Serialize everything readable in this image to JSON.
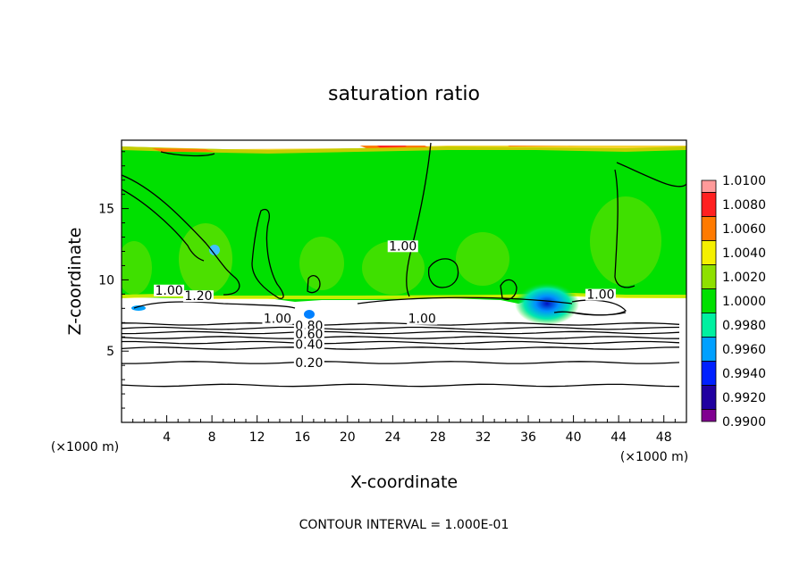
{
  "chart_data": {
    "type": "heatmap",
    "title": "saturation ratio",
    "xlabel": "X-coordinate",
    "ylabel": "Z-coordinate",
    "x_unit_left": "(×1000 m)",
    "x_unit_right": "(×1000 m)",
    "footer": "CONTOUR INTERVAL = 1.000E-01",
    "xlim": [
      0,
      50
    ],
    "ylim": [
      0,
      19.8
    ],
    "x_ticks": [
      4,
      8,
      12,
      16,
      20,
      24,
      28,
      32,
      36,
      40,
      44,
      48
    ],
    "y_ticks": [
      5,
      10,
      15
    ],
    "colorbar": {
      "levels": [
        "1.0100",
        "1.0080",
        "1.0060",
        "1.0040",
        "1.0020",
        "1.0000",
        "0.9980",
        "0.9960",
        "0.9940",
        "0.9920",
        "0.9900"
      ],
      "colors": [
        "#ff9a9a",
        "#ff2020",
        "#ff7a00",
        "#f5f000",
        "#8ee000",
        "#00e000",
        "#00f0a0",
        "#00a0ff",
        "#0020ff",
        "#2000a0",
        "#800090"
      ]
    },
    "contour_labels": [
      {
        "text": "1.00",
        "x": 4.2,
        "z": 9.1
      },
      {
        "text": "1.20",
        "x": 6.8,
        "z": 8.7
      },
      {
        "text": "1.00",
        "x": 13.8,
        "z": 7.1
      },
      {
        "text": "0.80",
        "x": 16.6,
        "z": 6.6
      },
      {
        "text": "0.60",
        "x": 16.6,
        "z": 6.0
      },
      {
        "text": "0.40",
        "x": 16.6,
        "z": 5.3
      },
      {
        "text": "0.20",
        "x": 16.6,
        "z": 4.0
      },
      {
        "text": "1.00",
        "x": 24.9,
        "z": 12.2
      },
      {
        "text": "1.00",
        "x": 26.6,
        "z": 7.1
      },
      {
        "text": "1.00",
        "x": 42.4,
        "z": 8.8
      }
    ],
    "horizontal_contours_z": [
      2.6,
      4.2,
      5.2,
      5.6,
      5.95,
      6.3,
      6.6,
      6.9
    ],
    "cloud_base_z": 8.8
  }
}
